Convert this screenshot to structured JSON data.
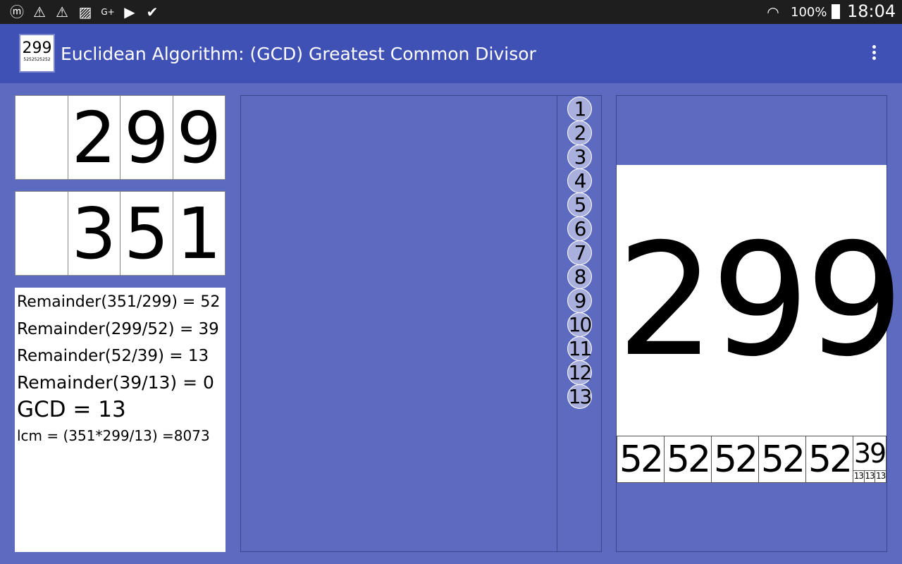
{
  "status": {
    "battery": "100%",
    "time": "18:04",
    "icons": [
      "app-m-icon",
      "warning-icon",
      "warning-icon",
      "image-icon",
      "google-plus-icon",
      "youtube-icon",
      "clipboard-check-icon"
    ]
  },
  "appbar": {
    "logo_number": "299",
    "logo_sub": "5252525252",
    "title": "Euclidean Algorithm: (GCD) Greatest Common Divisor"
  },
  "inputs": {
    "a_digits": [
      "",
      "2",
      "9",
      "9"
    ],
    "b_digits": [
      "",
      "3",
      "5",
      "1"
    ]
  },
  "steps": [
    "Remainder(351/299) = 52",
    "Remainder(299/52) = 39",
    "Remainder(52/39) = 13",
    "Remainder(39/13) = 0"
  ],
  "gcd": "GCD = 13",
  "lcm": "lcm = (351*299/13) =8073",
  "step_buttons": [
    "1",
    "2",
    "3",
    "4",
    "5",
    "6",
    "7",
    "8",
    "9",
    "10",
    "11",
    "12",
    "13"
  ],
  "visual": {
    "big": "299",
    "tiles": [
      "52",
      "52",
      "52",
      "52",
      "52"
    ],
    "last_top": "39",
    "last_bottom": [
      "13",
      "13",
      "13"
    ]
  }
}
